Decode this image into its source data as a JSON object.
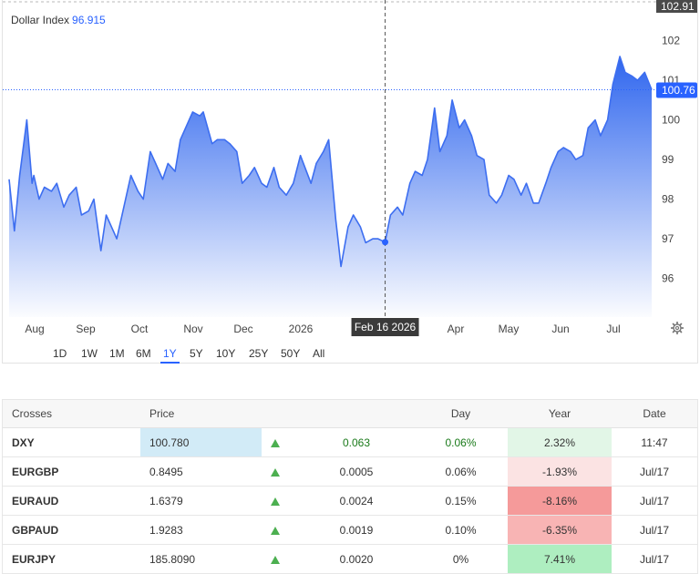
{
  "chart": {
    "title": "Dollar Index",
    "current_value": "96.915",
    "last_price_label": "100.76",
    "top_price_label": "102.91",
    "crosshair_date": "Feb 16 2026",
    "y_ticks": [
      "102",
      "101",
      "100",
      "99",
      "98",
      "97",
      "96"
    ],
    "x_ticks": [
      "Aug",
      "Sep",
      "Oct",
      "Nov",
      "Dec",
      "2026",
      "Apr",
      "May",
      "Jun",
      "Jul"
    ],
    "colors": {
      "line": "#3d6ef0",
      "accent": "#2962ff",
      "label_bg": "#2962ff"
    },
    "settings_icon": "gear-icon"
  },
  "chart_data": {
    "type": "area",
    "title": "Dollar Index",
    "xlabel": "",
    "ylabel": "",
    "ylim": [
      95.0,
      103.0
    ],
    "x_ticks": [
      "Aug",
      "Sep",
      "Oct",
      "Nov",
      "Dec",
      "2026",
      "Apr",
      "May",
      "Jun",
      "Jul"
    ],
    "series": [
      {
        "name": "Dollar Index",
        "x": [
          "2025-07-18",
          "2025-07-21",
          "2025-07-24",
          "2025-07-28",
          "2025-07-31",
          "2025-08-01",
          "2025-08-04",
          "2025-08-07",
          "2025-08-11",
          "2025-08-14",
          "2025-08-18",
          "2025-08-21",
          "2025-08-25",
          "2025-08-28",
          "2025-09-01",
          "2025-09-04",
          "2025-09-08",
          "2025-09-11",
          "2025-09-15",
          "2025-09-17",
          "2025-09-22",
          "2025-09-25",
          "2025-09-29",
          "2025-10-02",
          "2025-10-06",
          "2025-10-09",
          "2025-10-13",
          "2025-10-16",
          "2025-10-20",
          "2025-10-23",
          "2025-10-27",
          "2025-10-30",
          "2025-11-03",
          "2025-11-05",
          "2025-11-10",
          "2025-11-13",
          "2025-11-17",
          "2025-11-20",
          "2025-11-24",
          "2025-11-27",
          "2025-12-01",
          "2025-12-04",
          "2025-12-08",
          "2025-12-11",
          "2025-12-15",
          "2025-12-18",
          "2025-12-22",
          "2025-12-26",
          "2025-12-30",
          "2026-01-05",
          "2026-01-08",
          "2026-01-12",
          "2026-01-15",
          "2026-01-19",
          "2026-01-22",
          "2026-01-26",
          "2026-01-29",
          "2026-02-02",
          "2026-02-05",
          "2026-02-09",
          "2026-02-12",
          "2026-02-16",
          "2026-02-19",
          "2026-02-23",
          "2026-02-26",
          "2026-03-02",
          "2026-03-05",
          "2026-03-09",
          "2026-03-12",
          "2026-03-16",
          "2026-03-19",
          "2026-03-23",
          "2026-03-26",
          "2026-03-30",
          "2026-04-02",
          "2026-04-06",
          "2026-04-09",
          "2026-04-13",
          "2026-04-16",
          "2026-04-20",
          "2026-04-23",
          "2026-04-27",
          "2026-04-30",
          "2026-05-04",
          "2026-05-07",
          "2026-05-11",
          "2026-05-14",
          "2026-05-18",
          "2026-05-21",
          "2026-05-25",
          "2026-05-28",
          "2026-06-01",
          "2026-06-04",
          "2026-06-08",
          "2026-06-11",
          "2026-06-15",
          "2026-06-18",
          "2026-06-22",
          "2026-06-25",
          "2026-06-29",
          "2026-07-02",
          "2026-07-06",
          "2026-07-09",
          "2026-07-13",
          "2026-07-17"
        ],
        "values": [
          98.5,
          97.2,
          98.6,
          100.0,
          98.4,
          98.6,
          98.0,
          98.3,
          98.2,
          98.4,
          97.8,
          98.1,
          98.3,
          97.6,
          97.7,
          98.0,
          96.7,
          97.6,
          97.2,
          97.0,
          98.0,
          98.6,
          98.2,
          98.0,
          99.2,
          98.9,
          98.5,
          98.9,
          98.7,
          99.5,
          99.9,
          100.2,
          100.1,
          100.2,
          99.4,
          99.5,
          99.5,
          99.4,
          99.2,
          98.4,
          98.6,
          98.8,
          98.4,
          98.3,
          98.8,
          98.3,
          98.1,
          98.4,
          99.1,
          98.4,
          98.9,
          99.2,
          99.5,
          97.5,
          96.3,
          97.3,
          97.6,
          97.3,
          96.9,
          97.0,
          97.0,
          96.915,
          97.6,
          97.8,
          97.6,
          98.4,
          98.7,
          98.6,
          99.0,
          100.3,
          99.2,
          99.6,
          100.5,
          99.8,
          100.0,
          99.6,
          99.1,
          99.0,
          98.1,
          97.9,
          98.1,
          98.6,
          98.5,
          98.1,
          98.4,
          97.9,
          97.9,
          98.4,
          98.8,
          99.2,
          99.3,
          99.2,
          99.0,
          99.1,
          99.8,
          100.0,
          99.6,
          100.0,
          100.9,
          101.6,
          101.2,
          101.1,
          101.0,
          101.2,
          100.76
        ]
      }
    ],
    "crosshair": {
      "date": "2026-02-16",
      "value": 96.915
    },
    "last_value": 100.76,
    "grid": false,
    "legend": "top-left"
  },
  "ranges": {
    "items": [
      "1D",
      "1W",
      "1M",
      "6M",
      "1Y",
      "5Y",
      "10Y",
      "25Y",
      "50Y",
      "All"
    ],
    "active": "1Y"
  },
  "table": {
    "headers": [
      "Crosses",
      "Price",
      "",
      "",
      "Day",
      "Year",
      "Date"
    ],
    "rows": [
      {
        "symbol": "DXY",
        "price": "100.780",
        "change": "0.063",
        "day": "0.06%",
        "year": "2.32%",
        "date": "11:47",
        "price_bg": "#d2ebf7",
        "change_color": "#1a7a1a",
        "day_color": "#1a7a1a",
        "year_bg": "#e2f6e7"
      },
      {
        "symbol": "EURGBP",
        "price": "0.8495",
        "change": "0.0005",
        "day": "0.06%",
        "year": "-1.93%",
        "date": "Jul/17",
        "price_bg": "",
        "change_color": "#333333",
        "day_color": "#333333",
        "year_bg": "#fbe3e3"
      },
      {
        "symbol": "EURAUD",
        "price": "1.6379",
        "change": "0.0024",
        "day": "0.15%",
        "year": "-8.16%",
        "date": "Jul/17",
        "price_bg": "",
        "change_color": "#333333",
        "day_color": "#333333",
        "year_bg": "#f59a9a"
      },
      {
        "symbol": "GBPAUD",
        "price": "1.9283",
        "change": "0.0019",
        "day": "0.10%",
        "year": "-6.35%",
        "date": "Jul/17",
        "price_bg": "",
        "change_color": "#333333",
        "day_color": "#333333",
        "year_bg": "#f8b4b4"
      },
      {
        "symbol": "EURJPY",
        "price": "185.8090",
        "change": "0.0020",
        "day": "0%",
        "year": "7.41%",
        "date": "Jul/17",
        "price_bg": "",
        "change_color": "#333333",
        "day_color": "#333333",
        "year_bg": "#aeeec0"
      }
    ]
  }
}
